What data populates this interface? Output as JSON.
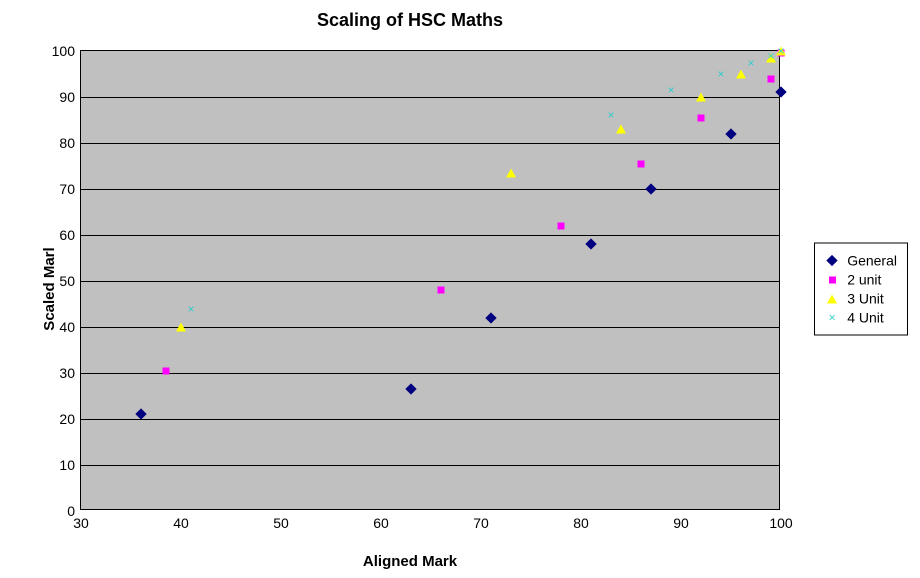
{
  "chart": {
    "type": "scatter",
    "title": "Scaling of HSC Maths",
    "title_fontsize": 18,
    "xlabel": "Aligned Mark",
    "ylabel": "Scaled Marl",
    "label_fontsize": 15,
    "background_color": "#c0c0c0",
    "grid_color": "#000000",
    "tick_fontsize": 14,
    "xlim": [
      30,
      100
    ],
    "ylim": [
      0,
      100
    ],
    "xticks": [
      30,
      40,
      50,
      60,
      70,
      80,
      90,
      100
    ],
    "yticks": [
      0,
      10,
      20,
      30,
      40,
      50,
      60,
      70,
      80,
      90,
      100
    ],
    "series": [
      {
        "name": "General",
        "marker": "diamond",
        "color": "#000080",
        "size": 8,
        "points": [
          {
            "x": 36,
            "y": 21
          },
          {
            "x": 63,
            "y": 26.5
          },
          {
            "x": 71,
            "y": 42
          },
          {
            "x": 81,
            "y": 58
          },
          {
            "x": 87,
            "y": 70
          },
          {
            "x": 95,
            "y": 82
          },
          {
            "x": 100,
            "y": 91
          }
        ]
      },
      {
        "name": "2 unit",
        "marker": "square",
        "color": "#ff00ff",
        "size": 7,
        "points": [
          {
            "x": 38.5,
            "y": 30.5
          },
          {
            "x": 66,
            "y": 48
          },
          {
            "x": 78,
            "y": 62
          },
          {
            "x": 86,
            "y": 75.5
          },
          {
            "x": 92,
            "y": 85.5
          },
          {
            "x": 99,
            "y": 94
          },
          {
            "x": 100,
            "y": 99.5
          }
        ]
      },
      {
        "name": "3 Unit",
        "marker": "triangle",
        "color": "#ffff00",
        "size": 9,
        "points": [
          {
            "x": 40,
            "y": 40
          },
          {
            "x": 73,
            "y": 73.5
          },
          {
            "x": 84,
            "y": 83
          },
          {
            "x": 92,
            "y": 90
          },
          {
            "x": 96,
            "y": 95
          },
          {
            "x": 99,
            "y": 98.5
          },
          {
            "x": 100,
            "y": 100
          }
        ]
      },
      {
        "name": "4 Unit",
        "marker": "x",
        "color": "#33cccc",
        "size": 12,
        "points": [
          {
            "x": 41,
            "y": 44
          },
          {
            "x": 83,
            "y": 86
          },
          {
            "x": 89,
            "y": 91.5
          },
          {
            "x": 94,
            "y": 95
          },
          {
            "x": 97,
            "y": 97.5
          },
          {
            "x": 99,
            "y": 99
          },
          {
            "x": 100,
            "y": 100
          }
        ]
      }
    ],
    "legend": {
      "position": "right",
      "border_color": "#000000",
      "background_color": "#ffffff",
      "fontsize": 14
    }
  }
}
